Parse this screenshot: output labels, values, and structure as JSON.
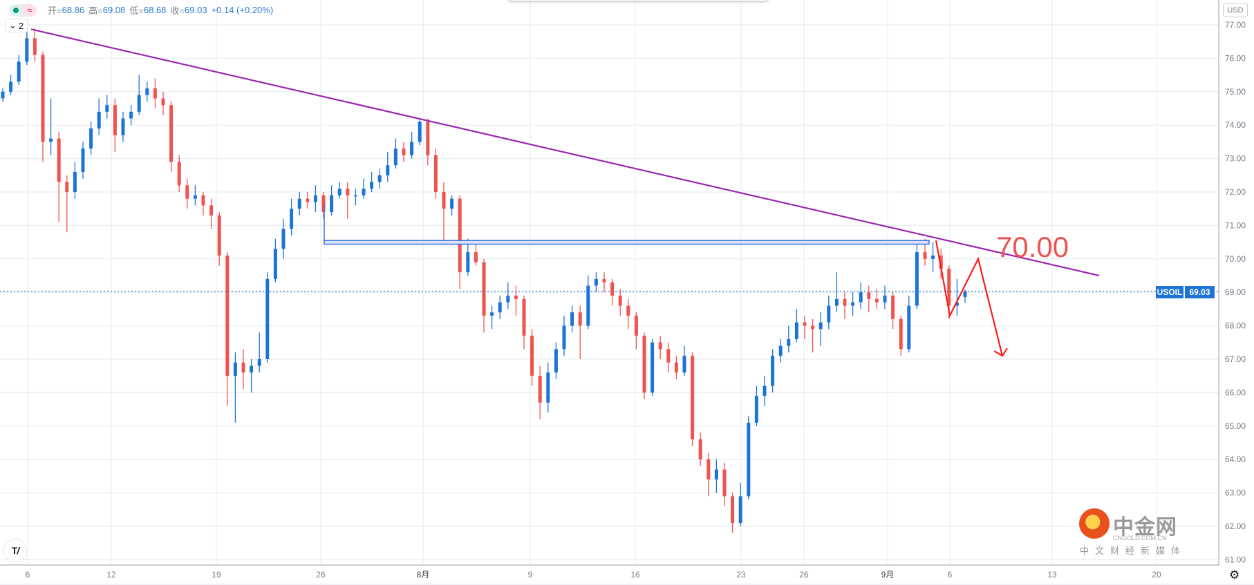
{
  "legend": {
    "open_label": "开=",
    "open": "68.86",
    "high_label": "高=",
    "high": "69.08",
    "low_label": "低=",
    "low": "68.68",
    "close_label": "收=",
    "close": "69.03",
    "change": "+0.14 (+0.20%)",
    "status_icon": "market-open-dot-icon",
    "wave_icon": "≈"
  },
  "collapse_button": {
    "icon": "chevron-down-icon",
    "count": "2"
  },
  "currency_button": "USD",
  "symbol_tag": "USOIL",
  "price_tag": "69.03",
  "annotation_text": "70.00",
  "settings_icon": "gear-icon",
  "watermark": {
    "name": "中金网",
    "domain": "CNGOLD.COM.CN",
    "slogan": "中文财经新媒体"
  },
  "tv_logo": "TV",
  "colors": {
    "up": "#1e74d6",
    "down": "#ef5350",
    "trendline": "#9c27b0",
    "zone": "#3a6fd8",
    "annotation": "#ff1a1a",
    "grid": "#e3ebf2"
  },
  "chart_data": {
    "type": "candlestick",
    "symbol": "USOIL",
    "ylim": [
      60.8,
      77.2
    ],
    "y_ticks": [
      "77.00",
      "76.00",
      "75.00",
      "74.00",
      "73.00",
      "72.00",
      "71.00",
      "70.00",
      "69.00",
      "68.00",
      "67.00",
      "66.00",
      "65.00",
      "64.00",
      "63.00",
      "62.00",
      "61.00"
    ],
    "x_ticks": [
      "6",
      "12",
      "19",
      "26",
      "8月",
      "9",
      "16",
      "23",
      "26",
      "9月",
      "6",
      "13",
      "20"
    ],
    "last_price": 69.03,
    "ohlc": [
      [
        74.8,
        75.1,
        74.7,
        75.0
      ],
      [
        75.0,
        75.5,
        74.9,
        75.3
      ],
      [
        75.3,
        76.1,
        75.2,
        75.9
      ],
      [
        75.9,
        76.8,
        75.8,
        76.6
      ],
      [
        76.6,
        76.9,
        75.9,
        76.1
      ],
      [
        76.1,
        76.2,
        72.9,
        73.5
      ],
      [
        73.5,
        74.8,
        73.1,
        73.6
      ],
      [
        73.6,
        73.8,
        71.1,
        72.3
      ],
      [
        72.3,
        72.5,
        70.8,
        72.0
      ],
      [
        72.0,
        72.9,
        71.8,
        72.6
      ],
      [
        72.6,
        73.5,
        72.4,
        73.3
      ],
      [
        73.3,
        74.1,
        73.1,
        73.9
      ],
      [
        73.9,
        74.8,
        73.7,
        74.4
      ],
      [
        74.4,
        74.9,
        74.2,
        74.6
      ],
      [
        74.6,
        74.8,
        73.2,
        73.7
      ],
      [
        73.7,
        74.4,
        73.5,
        74.2
      ],
      [
        74.2,
        74.6,
        74.0,
        74.4
      ],
      [
        74.4,
        75.5,
        74.3,
        74.9
      ],
      [
        74.9,
        75.3,
        74.7,
        75.1
      ],
      [
        75.1,
        75.4,
        74.5,
        74.8
      ],
      [
        74.8,
        75.0,
        74.3,
        74.6
      ],
      [
        74.6,
        74.7,
        72.6,
        72.9
      ],
      [
        72.9,
        73.1,
        72.0,
        72.2
      ],
      [
        72.2,
        72.4,
        71.5,
        71.8
      ],
      [
        71.8,
        72.2,
        71.6,
        71.9
      ],
      [
        71.9,
        72.0,
        71.3,
        71.6
      ],
      [
        71.6,
        71.8,
        70.9,
        71.3
      ],
      [
        71.3,
        71.4,
        69.8,
        70.1
      ],
      [
        70.1,
        70.2,
        65.6,
        66.5
      ],
      [
        66.5,
        67.2,
        65.1,
        66.9
      ],
      [
        66.9,
        67.3,
        66.1,
        66.6
      ],
      [
        66.6,
        67.0,
        66.0,
        66.8
      ],
      [
        66.8,
        67.8,
        66.6,
        67.0
      ],
      [
        67.0,
        69.6,
        66.9,
        69.4
      ],
      [
        69.4,
        70.6,
        69.3,
        70.3
      ],
      [
        70.3,
        71.2,
        70.0,
        70.9
      ],
      [
        70.9,
        71.8,
        70.7,
        71.5
      ],
      [
        71.5,
        72.0,
        71.3,
        71.8
      ],
      [
        71.8,
        72.0,
        71.5,
        71.7
      ],
      [
        71.7,
        72.2,
        71.4,
        71.9
      ],
      [
        71.9,
        72.0,
        71.2,
        71.4
      ],
      [
        71.4,
        72.2,
        71.3,
        71.9
      ],
      [
        71.9,
        72.3,
        71.8,
        72.1
      ],
      [
        72.1,
        72.3,
        71.2,
        71.9
      ],
      [
        71.9,
        72.1,
        71.6,
        71.9
      ],
      [
        71.9,
        72.4,
        71.8,
        72.1
      ],
      [
        72.1,
        72.6,
        72.0,
        72.3
      ],
      [
        72.3,
        72.7,
        72.1,
        72.5
      ],
      [
        72.5,
        73.2,
        72.3,
        72.8
      ],
      [
        72.8,
        73.6,
        72.7,
        73.3
      ],
      [
        73.3,
        73.5,
        72.9,
        73.1
      ],
      [
        73.1,
        73.8,
        73.0,
        73.5
      ],
      [
        73.5,
        74.2,
        73.4,
        74.1
      ],
      [
        74.1,
        74.2,
        72.8,
        73.1
      ],
      [
        73.1,
        73.3,
        71.8,
        72.0
      ],
      [
        72.0,
        72.3,
        70.5,
        71.5
      ],
      [
        71.5,
        71.9,
        71.3,
        71.8
      ],
      [
        71.8,
        71.9,
        69.1,
        69.6
      ],
      [
        69.6,
        70.6,
        69.5,
        70.2
      ],
      [
        70.2,
        70.5,
        69.8,
        69.9
      ],
      [
        69.9,
        70.0,
        67.8,
        68.3
      ],
      [
        68.3,
        68.6,
        67.9,
        68.4
      ],
      [
        68.4,
        68.9,
        68.2,
        68.7
      ],
      [
        68.7,
        69.3,
        68.5,
        68.9
      ],
      [
        68.9,
        69.2,
        68.3,
        68.8
      ],
      [
        68.8,
        68.9,
        67.3,
        67.7
      ],
      [
        67.7,
        67.9,
        66.2,
        66.5
      ],
      [
        66.5,
        66.8,
        65.2,
        65.7
      ],
      [
        65.7,
        66.9,
        65.4,
        66.6
      ],
      [
        66.6,
        67.5,
        66.4,
        67.3
      ],
      [
        67.3,
        68.3,
        67.1,
        68.0
      ],
      [
        68.0,
        68.6,
        67.8,
        68.4
      ],
      [
        68.4,
        68.6,
        67.0,
        68.0
      ],
      [
        68.0,
        69.5,
        67.9,
        69.2
      ],
      [
        69.2,
        69.6,
        69.0,
        69.4
      ],
      [
        69.4,
        69.6,
        69.0,
        69.3
      ],
      [
        69.3,
        69.4,
        68.6,
        68.9
      ],
      [
        68.9,
        69.1,
        68.3,
        68.6
      ],
      [
        68.6,
        68.8,
        67.9,
        68.3
      ],
      [
        68.3,
        68.4,
        67.3,
        67.7
      ],
      [
        67.7,
        67.8,
        65.8,
        66.0
      ],
      [
        66.0,
        67.6,
        65.9,
        67.5
      ],
      [
        67.5,
        67.7,
        67.0,
        67.3
      ],
      [
        67.3,
        67.5,
        66.6,
        66.9
      ],
      [
        66.9,
        67.1,
        66.4,
        66.6
      ],
      [
        66.6,
        67.4,
        66.5,
        67.1
      ],
      [
        67.1,
        67.2,
        64.4,
        64.6
      ],
      [
        64.6,
        64.8,
        63.8,
        64.0
      ],
      [
        64.0,
        64.2,
        62.9,
        63.4
      ],
      [
        63.4,
        64.0,
        63.0,
        63.7
      ],
      [
        63.7,
        63.9,
        62.6,
        62.9
      ],
      [
        62.9,
        63.0,
        61.8,
        62.1
      ],
      [
        62.1,
        63.3,
        62.0,
        62.9
      ],
      [
        62.9,
        65.3,
        62.8,
        65.1
      ],
      [
        65.1,
        66.2,
        65.0,
        65.9
      ],
      [
        65.9,
        66.5,
        65.6,
        66.2
      ],
      [
        66.2,
        67.3,
        66.0,
        67.1
      ],
      [
        67.1,
        67.6,
        66.9,
        67.4
      ],
      [
        67.4,
        68.0,
        67.2,
        67.6
      ],
      [
        67.6,
        68.5,
        67.5,
        68.1
      ],
      [
        68.1,
        68.3,
        67.6,
        68.0
      ],
      [
        68.0,
        68.2,
        67.2,
        67.9
      ],
      [
        67.9,
        68.4,
        67.4,
        68.1
      ],
      [
        68.1,
        68.9,
        67.9,
        68.6
      ],
      [
        68.6,
        69.6,
        68.4,
        68.8
      ],
      [
        68.8,
        69.0,
        68.2,
        68.6
      ],
      [
        68.6,
        69.0,
        68.3,
        68.7
      ],
      [
        68.7,
        69.3,
        68.5,
        69.0
      ],
      [
        69.0,
        69.2,
        68.4,
        68.8
      ],
      [
        68.8,
        69.1,
        68.5,
        68.7
      ],
      [
        68.7,
        69.2,
        68.5,
        68.9
      ],
      [
        68.9,
        69.0,
        67.9,
        68.2
      ],
      [
        68.2,
        68.3,
        67.1,
        67.3
      ],
      [
        67.3,
        68.9,
        67.2,
        68.6
      ],
      [
        68.6,
        70.5,
        68.5,
        70.2
      ],
      [
        70.2,
        70.6,
        69.8,
        70.0
      ],
      [
        70.0,
        70.5,
        69.6,
        70.1
      ],
      [
        70.1,
        70.3,
        69.4,
        69.7
      ],
      [
        69.7,
        69.8,
        68.2,
        68.6
      ],
      [
        68.6,
        69.4,
        68.3,
        68.7
      ],
      [
        68.86,
        69.08,
        68.68,
        69.03
      ]
    ],
    "drawings": {
      "trendline": {
        "from_price": 76.87,
        "to_price": 69.5
      },
      "zone": {
        "top": 70.55,
        "bottom": 70.44
      },
      "projection_prices": [
        70.55,
        68.3,
        70.0,
        67.1
      ]
    }
  }
}
